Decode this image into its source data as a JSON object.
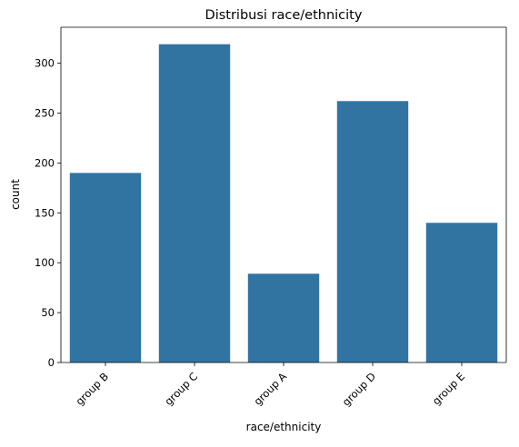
{
  "chart_data": {
    "type": "bar",
    "title": "Distribusi race/ethnicity",
    "xlabel": "race/ethnicity",
    "ylabel": "count",
    "categories": [
      "group B",
      "group C",
      "group A",
      "group D",
      "group E"
    ],
    "values": [
      190,
      319,
      89,
      262,
      140
    ],
    "ylim": [
      0,
      336
    ],
    "yticks": [
      0,
      50,
      100,
      150,
      200,
      250,
      300
    ],
    "bar_color": "#3274a1",
    "grid": false,
    "legend": "none"
  }
}
